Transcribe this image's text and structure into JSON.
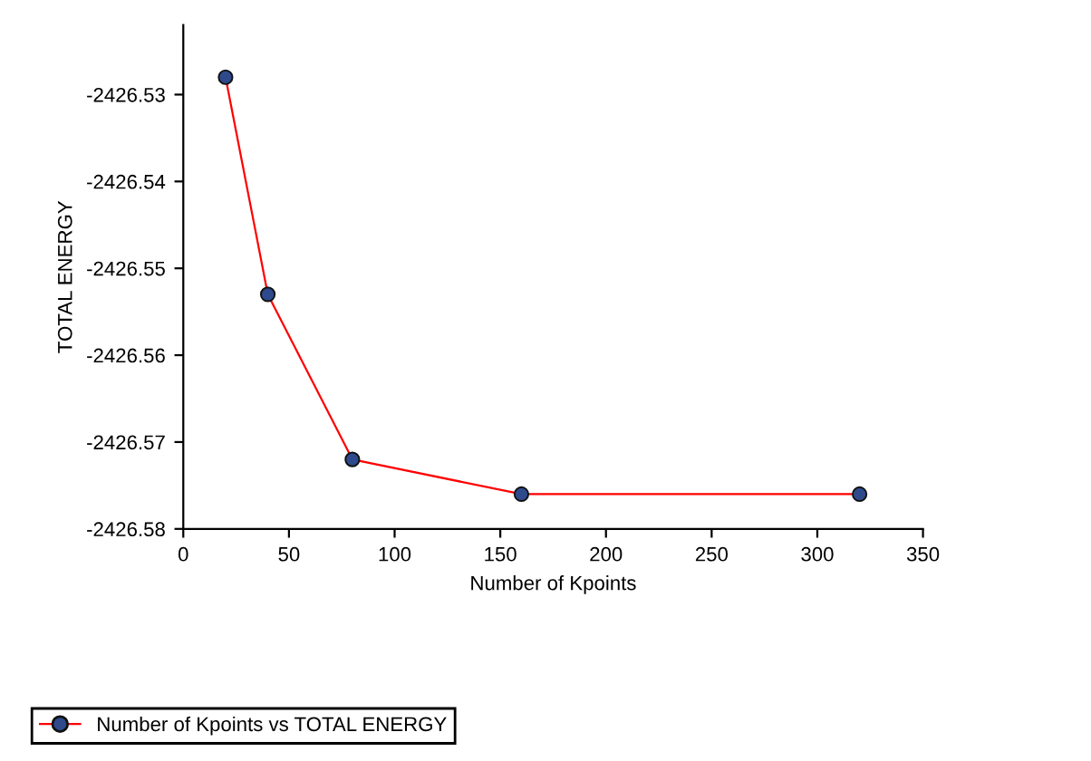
{
  "chart_data": {
    "type": "line",
    "xlabel": "Number of Kpoints",
    "ylabel": "TOTAL ENERGY",
    "x": [
      20,
      40,
      80,
      160,
      320
    ],
    "series": [
      {
        "name": "Number of Kpoints vs TOTAL ENERGY",
        "color": "#ff0000",
        "colors": [
          "#2e4a8c",
          "#2e4a8c",
          "#2e4a8c",
          "#2e4a8c",
          "#2e4a8c"
        ],
        "values": [
          -2426.528,
          -2426.553,
          -2426.572,
          -2426.576,
          -2426.576
        ]
      }
    ],
    "xlim": [
      0,
      350
    ],
    "xticks": [
      0,
      50,
      100,
      150,
      200,
      250,
      300,
      350
    ],
    "ylim": [
      -2426.58,
      -2426.522
    ],
    "yticks": [
      -2426.58,
      -2426.57,
      -2426.56,
      -2426.55,
      -2426.54,
      -2426.53
    ],
    "marker": "circle",
    "line_style": "solid",
    "grid": false,
    "legend": "bottom left"
  }
}
